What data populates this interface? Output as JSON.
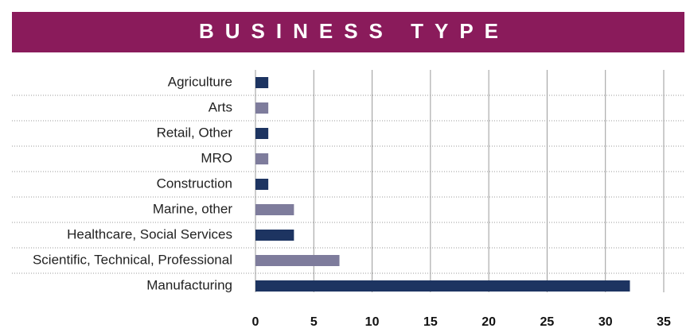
{
  "chart_data": {
    "type": "bar",
    "orientation": "horizontal",
    "title": "BUSINESS TYPE",
    "categories": [
      "Agriculture",
      "Arts",
      "Retail, Other",
      "MRO",
      "Construction",
      "Marine, other",
      "Healthcare, Social Services",
      "Scientific, Technical, Professional",
      "Manufacturing"
    ],
    "values": [
      1.1,
      1.1,
      1.1,
      1.1,
      1.1,
      3.3,
      3.3,
      7.2,
      32.1
    ],
    "colors": [
      "#1d3461",
      "#7e7c9c",
      "#1d3461",
      "#7e7c9c",
      "#1d3461",
      "#7e7c9c",
      "#1d3461",
      "#7e7c9c",
      "#1d3461"
    ],
    "xlim": [
      0,
      35
    ],
    "xticks": [
      0,
      5,
      10,
      15,
      20,
      25,
      30,
      35
    ],
    "grid": true
  }
}
